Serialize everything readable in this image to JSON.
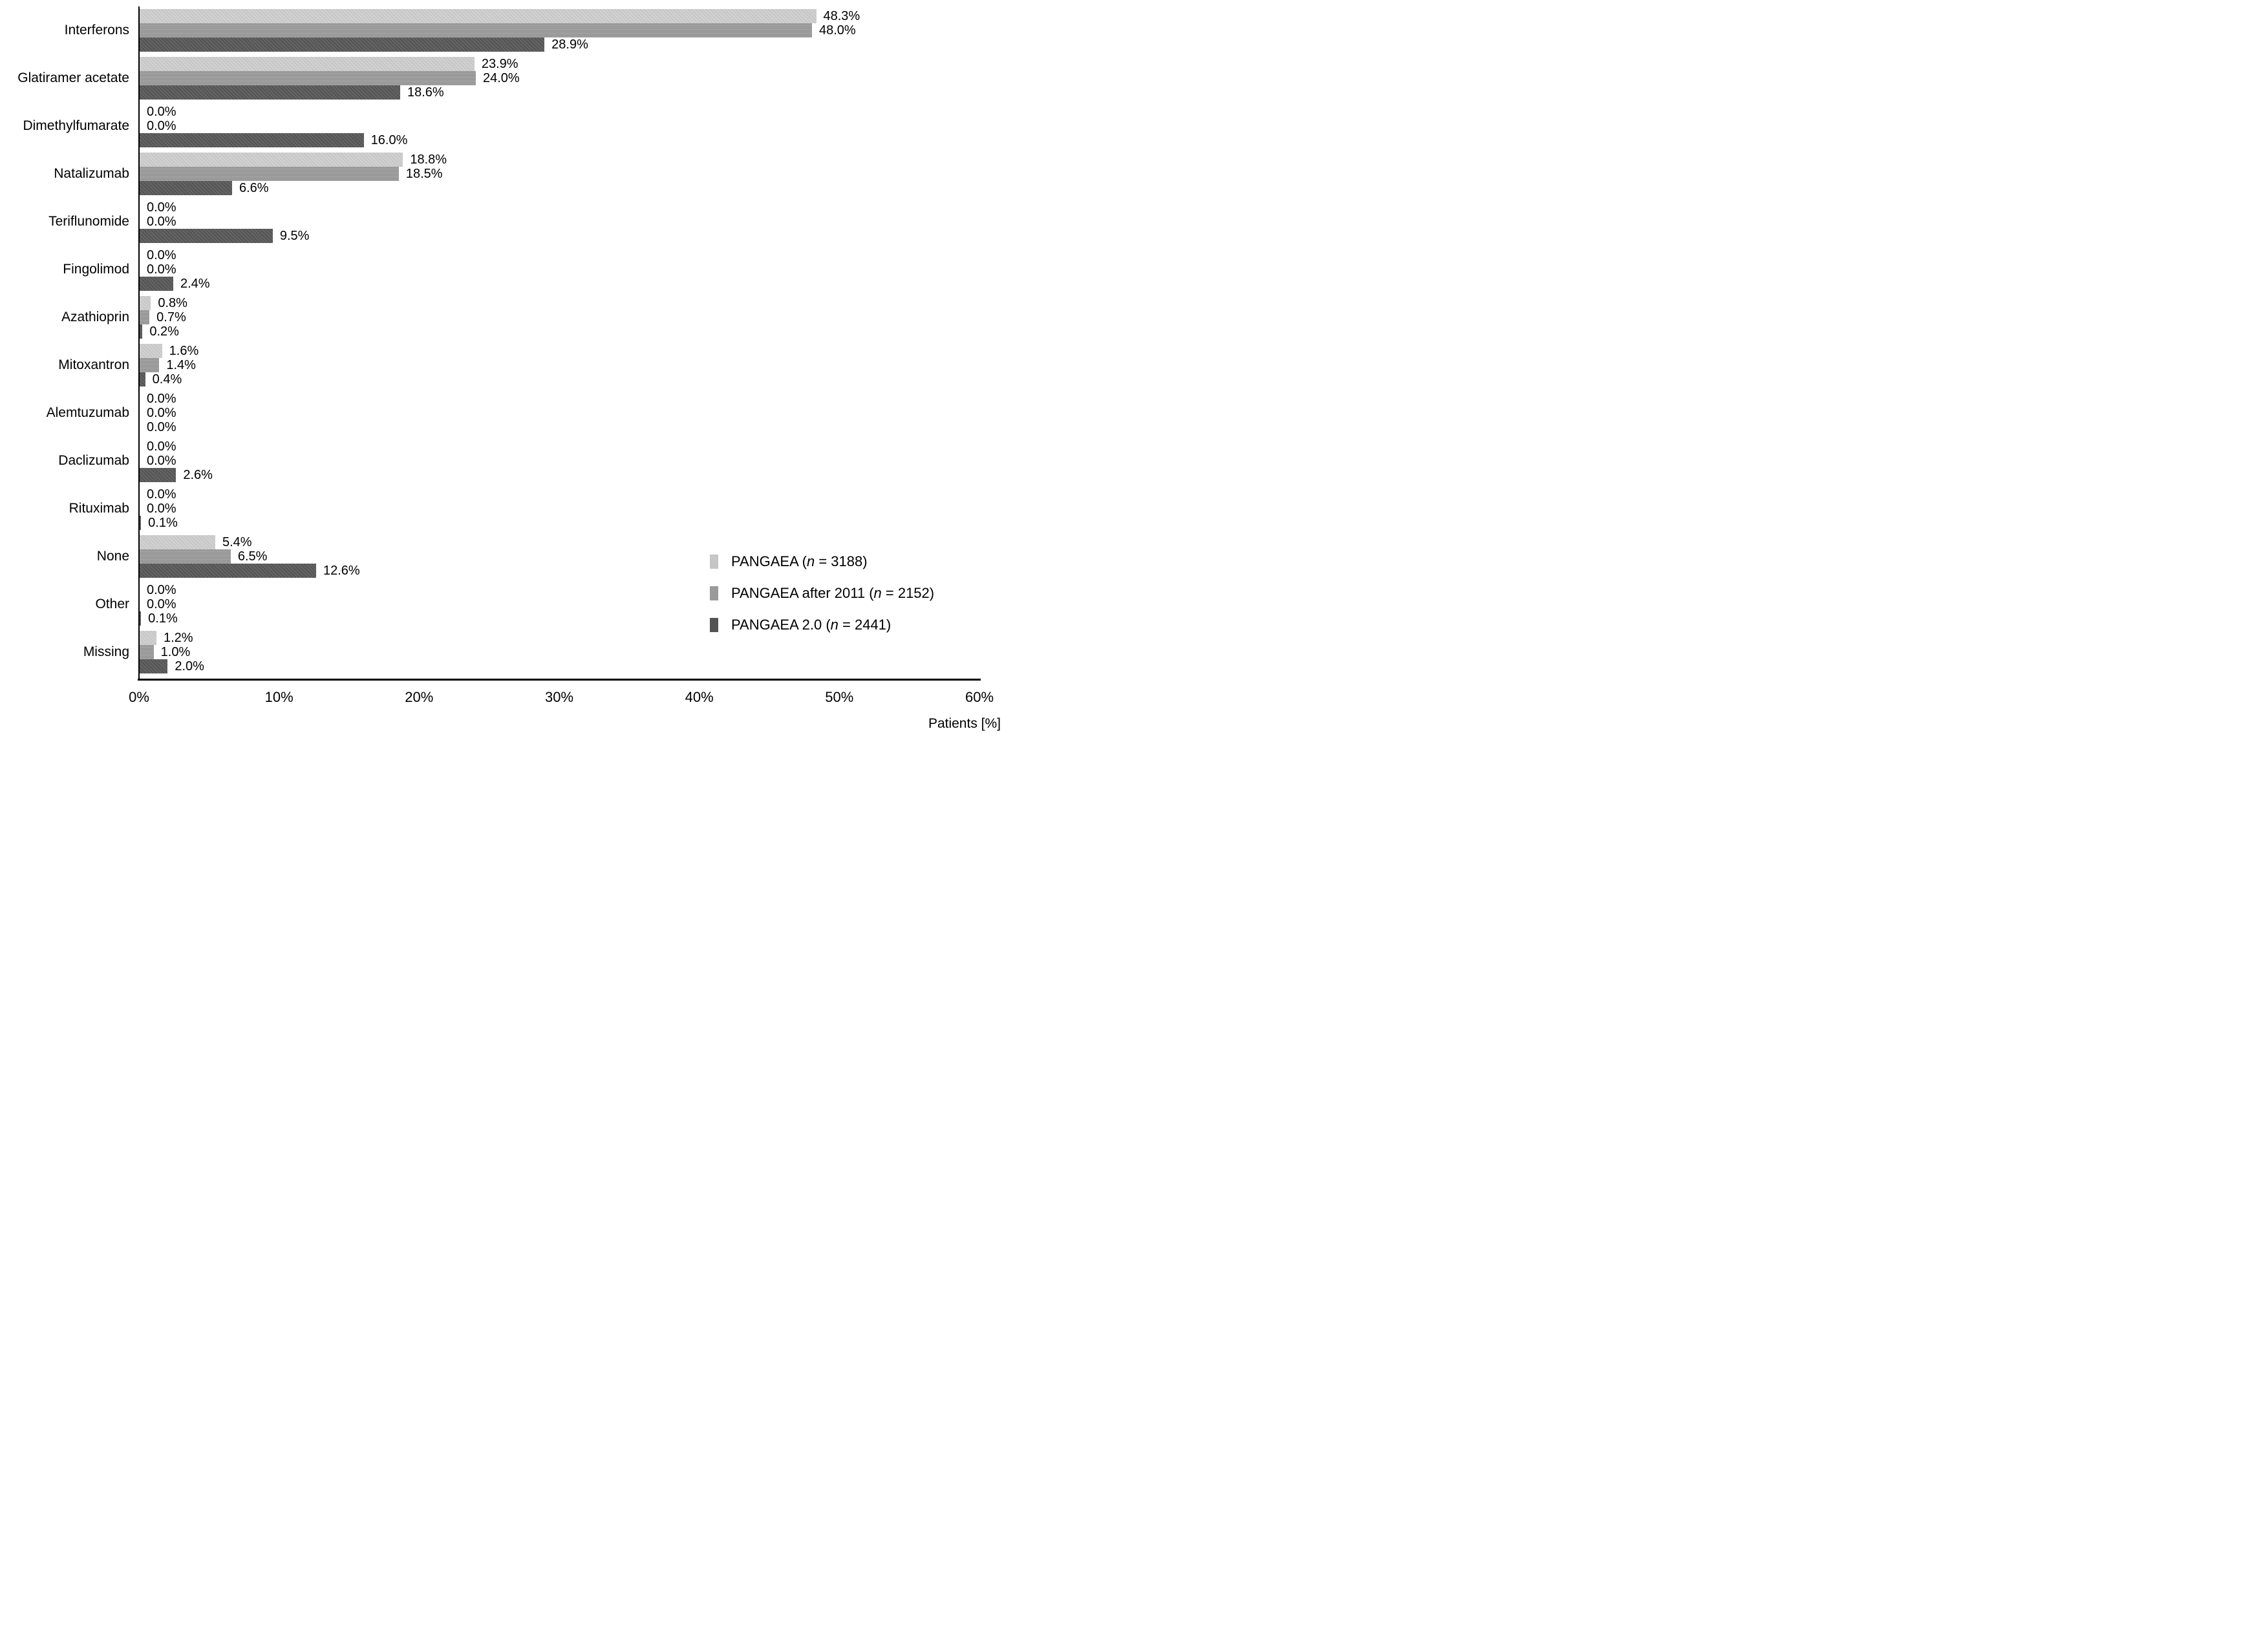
{
  "figure": {
    "xlabel": "Patients [%]"
  },
  "axis": {
    "xmin": 0,
    "xmax": 60,
    "ticks": [
      "0%",
      "10%",
      "20%",
      "30%",
      "40%",
      "50%",
      "60%"
    ]
  },
  "legend": {
    "items": [
      {
        "prefix": "PANGAEA (",
        "n": "n",
        "suffix": " = 3188)",
        "color": "#c6c6c6"
      },
      {
        "prefix": "PANGAEA after 2011 (",
        "n": "n",
        "suffix": " = 2152)",
        "color": "#9a9a9a"
      },
      {
        "prefix": "PANGAEA 2.0 (",
        "n": "n",
        "suffix": " = 2441)",
        "color": "#545454"
      }
    ]
  },
  "chart_data": {
    "type": "bar",
    "orientation": "horizontal",
    "title": "",
    "xlabel": "Patients [%]",
    "ylabel": "",
    "xlim": [
      0,
      60
    ],
    "grid": false,
    "legend_position": "bottom-right-inside",
    "value_suffix": "%",
    "value_decimals": 1,
    "categories": [
      "Interferons",
      "Glatiramer acetate",
      "Dimethylfumarate",
      "Natalizumab",
      "Teriflunomide",
      "Fingolimod",
      "Azathioprin",
      "Mitoxantron",
      "Alemtuzumab",
      "Daclizumab",
      "Rituximab",
      "None",
      "Other",
      "Missing"
    ],
    "series": [
      {
        "name": "PANGAEA",
        "n": 3188,
        "color": "#c6c6c6",
        "values": [
          48.3,
          23.9,
          0.0,
          18.8,
          0.0,
          0.0,
          0.8,
          1.6,
          0.0,
          0.0,
          0.0,
          5.4,
          0.0,
          1.2
        ]
      },
      {
        "name": "PANGAEA after 2011",
        "n": 2152,
        "color": "#9a9a9a",
        "values": [
          48.0,
          24.0,
          0.0,
          18.5,
          0.0,
          0.0,
          0.7,
          1.4,
          0.0,
          0.0,
          0.0,
          6.5,
          0.0,
          1.0
        ]
      },
      {
        "name": "PANGAEA 2.0",
        "n": 2441,
        "color": "#545454",
        "values": [
          28.9,
          18.6,
          16.0,
          6.6,
          9.5,
          2.4,
          0.2,
          0.4,
          0.0,
          2.6,
          0.1,
          12.6,
          0.1,
          2.0
        ]
      }
    ]
  }
}
